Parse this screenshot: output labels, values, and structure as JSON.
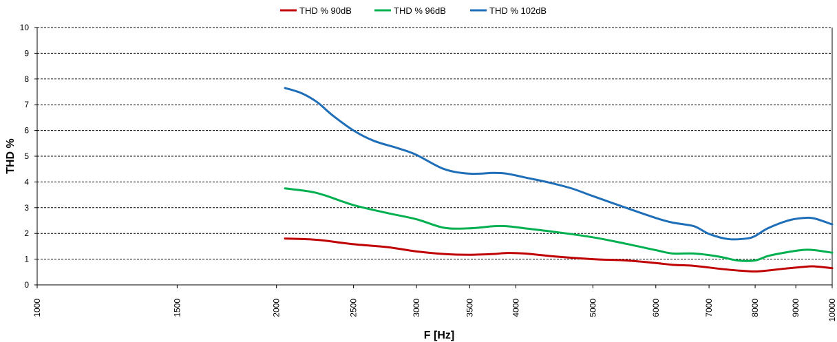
{
  "chart_data": {
    "type": "line",
    "title": "",
    "xlabel": "F [Hz]",
    "ylabel": "THD %",
    "x_scale": "log",
    "xlim": [
      1000,
      10000
    ],
    "ylim": [
      0,
      10
    ],
    "x_ticks": [
      1000,
      1500,
      2000,
      2500,
      3000,
      3500,
      4000,
      5000,
      6000,
      7000,
      8000,
      9000,
      10000
    ],
    "y_ticks": [
      0,
      1,
      2,
      3,
      4,
      5,
      6,
      7,
      8,
      9,
      10
    ],
    "grid": "horizontal-dashed",
    "legend_position": "top-center",
    "series": [
      {
        "name": "THD % 90dB",
        "color": "#c00000",
        "x": [
          2050,
          2200,
          2300,
          2500,
          2750,
          3000,
          3250,
          3500,
          3750,
          3900,
          4100,
          4500,
          5000,
          5500,
          6000,
          6300,
          6700,
          7200,
          7600,
          8000,
          8300,
          8700,
          9200,
          9500,
          10000
        ],
        "y": [
          1.8,
          1.77,
          1.72,
          1.58,
          1.47,
          1.3,
          1.2,
          1.17,
          1.2,
          1.24,
          1.22,
          1.1,
          1.0,
          0.95,
          0.85,
          0.78,
          0.74,
          0.63,
          0.56,
          0.52,
          0.56,
          0.63,
          0.7,
          0.72,
          0.65
        ]
      },
      {
        "name": "THD % 96dB",
        "color": "#00b050",
        "x": [
          2050,
          2200,
          2300,
          2500,
          2750,
          3000,
          3250,
          3500,
          3750,
          3900,
          4100,
          4500,
          5000,
          5500,
          6000,
          6300,
          6700,
          7200,
          7600,
          8000,
          8300,
          8700,
          9200,
          9500,
          10000
        ],
        "y": [
          3.75,
          3.63,
          3.48,
          3.1,
          2.8,
          2.55,
          2.22,
          2.2,
          2.28,
          2.28,
          2.2,
          2.05,
          1.85,
          1.6,
          1.35,
          1.22,
          1.22,
          1.1,
          0.95,
          0.95,
          1.12,
          1.25,
          1.36,
          1.35,
          1.25
        ]
      },
      {
        "name": "THD % 102dB",
        "color": "#1f6eb8",
        "x": [
          2050,
          2150,
          2250,
          2350,
          2500,
          2650,
          2850,
          3000,
          3250,
          3500,
          3750,
          3900,
          4100,
          4400,
          4700,
          5000,
          5500,
          6000,
          6300,
          6700,
          7000,
          7400,
          7800,
          8000,
          8300,
          8800,
          9200,
          9500,
          10000
        ],
        "y": [
          7.65,
          7.45,
          7.1,
          6.6,
          6.0,
          5.6,
          5.3,
          5.05,
          4.5,
          4.32,
          4.35,
          4.32,
          4.18,
          3.98,
          3.75,
          3.45,
          3.0,
          2.6,
          2.42,
          2.28,
          1.98,
          1.78,
          1.8,
          1.9,
          2.2,
          2.5,
          2.6,
          2.58,
          2.35
        ]
      }
    ]
  }
}
